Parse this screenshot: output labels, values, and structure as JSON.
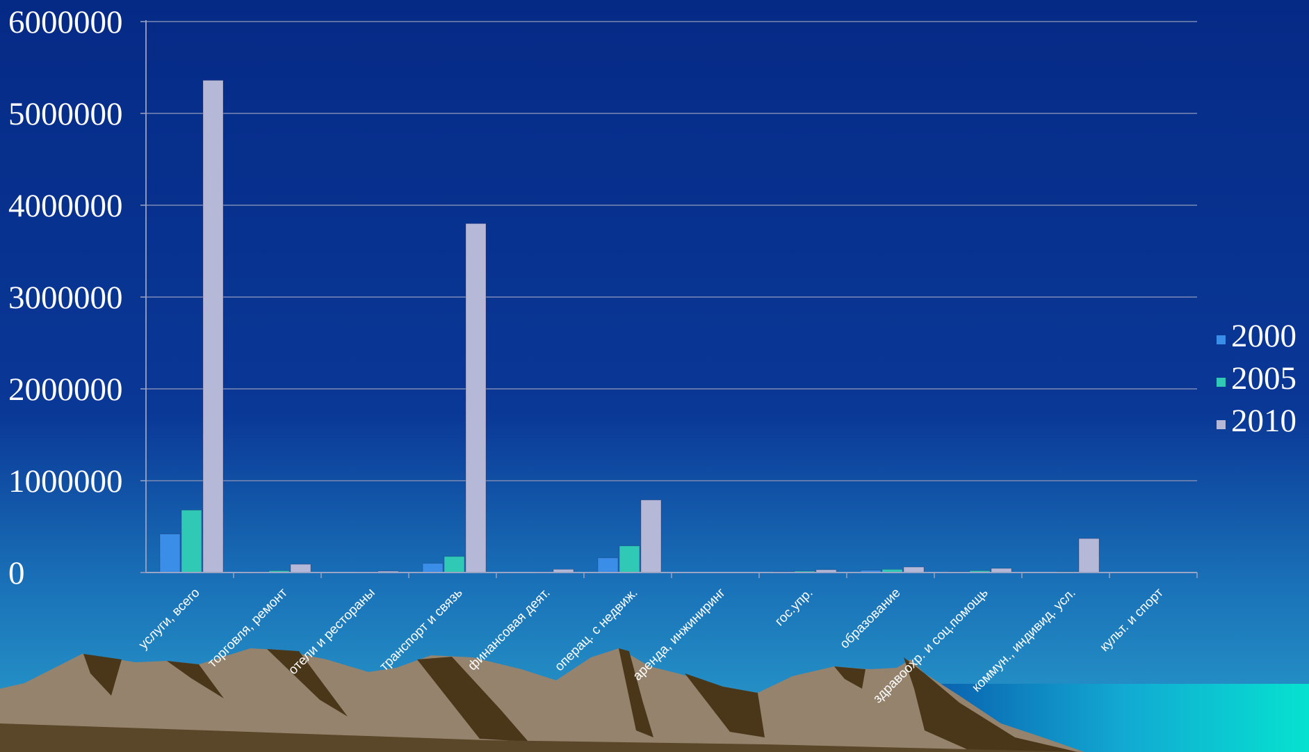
{
  "chart_data": {
    "type": "bar",
    "title": "",
    "xlabel": "",
    "ylabel": "",
    "ylim": [
      0,
      6000000
    ],
    "y_ticks": [
      0,
      1000000,
      2000000,
      3000000,
      4000000,
      5000000,
      6000000
    ],
    "y_tick_labels": [
      "0",
      "1000000",
      "2000000",
      "3000000",
      "4000000",
      "5000000",
      "6000000"
    ],
    "grid": true,
    "legend_position": "right",
    "categories": [
      "услуги, всего",
      "торговля, ремонт",
      "отели и рестораны",
      "транспорт и связь",
      "финансовая деят.",
      "операц. с недвиж.",
      "аренда, инжиниринг",
      "гос.упр.",
      "образование",
      "здравоохр. и соц.помощь",
      "коммун., индивид. усл.",
      "культ. и спорт"
    ],
    "series": [
      {
        "name": "2000",
        "color": "#3a8ee8",
        "values": [
          420000,
          5000,
          3000,
          100000,
          3000,
          160000,
          0,
          10000,
          25000,
          8000,
          3000,
          0
        ]
      },
      {
        "name": "2005",
        "color": "#2fc9b6",
        "values": [
          680000,
          20000,
          5000,
          175000,
          5000,
          290000,
          0,
          15000,
          35000,
          20000,
          8000,
          0
        ]
      },
      {
        "name": "2010",
        "color": "#b6b8d8",
        "values": [
          5360000,
          90000,
          15000,
          3800000,
          35000,
          790000,
          0,
          30000,
          60000,
          45000,
          370000,
          0
        ]
      }
    ]
  },
  "colors": {
    "background_top": "#052a86",
    "background_bottom": "#1e8cc2",
    "gridline": "#7c8ab4",
    "axis": "#9aa4c4",
    "sea": "#11b6d4",
    "mountain_light": "#96836d",
    "mountain_dark": "#4a3719"
  }
}
